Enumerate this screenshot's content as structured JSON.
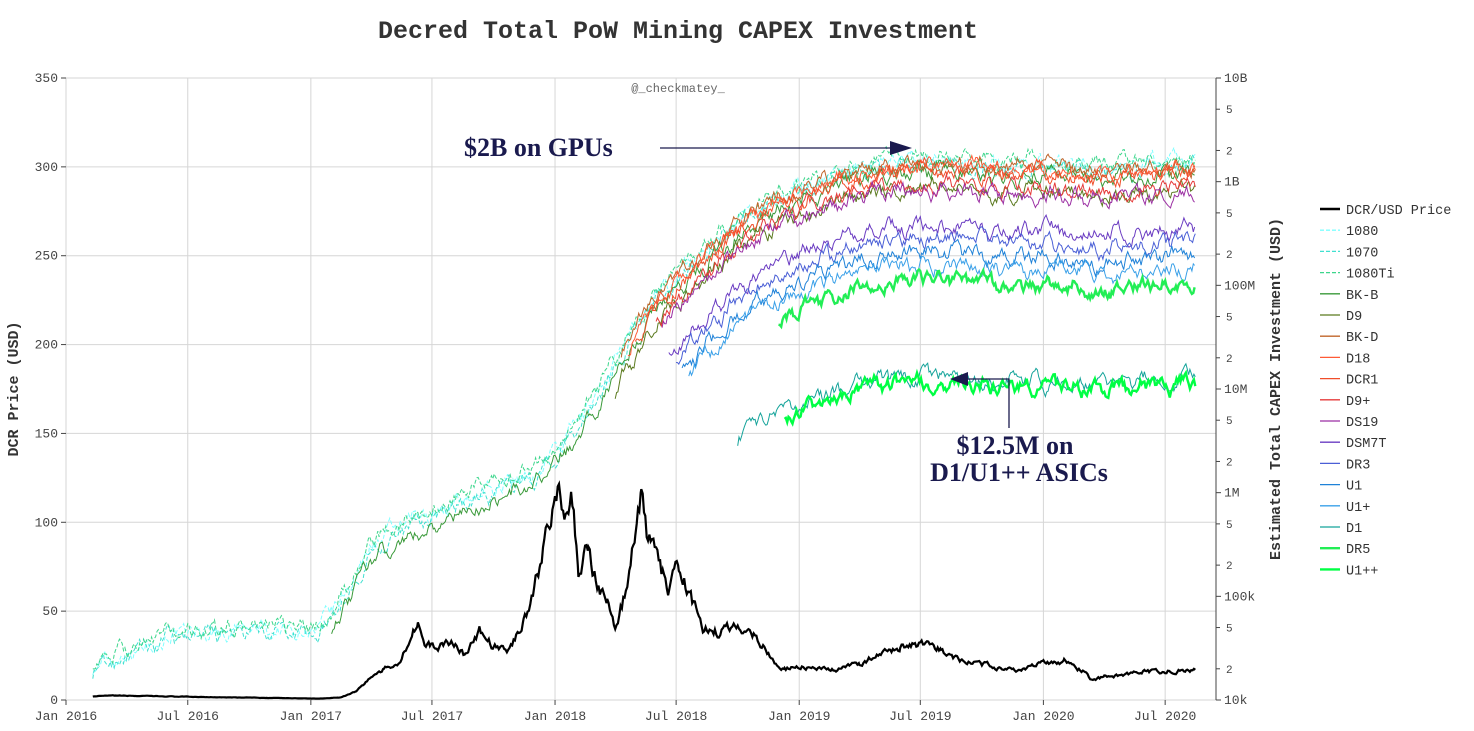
{
  "chart_data": {
    "type": "line",
    "title": "Decred Total PoW Mining CAPEX Investment",
    "credit": "@_checkmatey_",
    "ylabel": "DCR Price (USD)",
    "y2label": "Estimated Total CAPEX Investment (USD)",
    "y2scale": "log",
    "ylim": [
      0,
      350
    ],
    "y2lim": [
      10000,
      10000000000
    ],
    "xlim": [
      "2016-01-01",
      "2020-09-15"
    ],
    "grid": true,
    "legend_position": "right",
    "x_ticks": [
      "Jan 2016",
      "Jul 2016",
      "Jan 2017",
      "Jul 2017",
      "Jan 2018",
      "Jul 2018",
      "Jan 2019",
      "Jul 2019",
      "Jan 2020",
      "Jul 2020"
    ],
    "y_ticks": [
      "0",
      "50",
      "100",
      "150",
      "200",
      "250",
      "300",
      "350"
    ],
    "y2_major_ticks": [
      "10k",
      "100k",
      "1M",
      "10M",
      "100M",
      "1B",
      "10B"
    ],
    "y2_minor_ticks": [
      "2",
      "5"
    ],
    "price_series": {
      "name": "DCR/USD Price",
      "color": "#000000",
      "points": [
        [
          "2016-02-10",
          2
        ],
        [
          "2016-03-15",
          2.5
        ],
        [
          "2016-06-01",
          2
        ],
        [
          "2016-09-01",
          1.5
        ],
        [
          "2016-12-01",
          1
        ],
        [
          "2017-01-15",
          0.8
        ],
        [
          "2017-02-15",
          1.5
        ],
        [
          "2017-03-10",
          5
        ],
        [
          "2017-04-01",
          13
        ],
        [
          "2017-04-20",
          17
        ],
        [
          "2017-05-15",
          22
        ],
        [
          "2017-06-01",
          38
        ],
        [
          "2017-06-10",
          45
        ],
        [
          "2017-06-20",
          30
        ],
        [
          "2017-07-10",
          30
        ],
        [
          "2017-08-01",
          33
        ],
        [
          "2017-08-20",
          25
        ],
        [
          "2017-09-10",
          38
        ],
        [
          "2017-10-01",
          30
        ],
        [
          "2017-10-25",
          28
        ],
        [
          "2017-11-15",
          45
        ],
        [
          "2017-11-25",
          55
        ],
        [
          "2017-12-10",
          75
        ],
        [
          "2017-12-20",
          100
        ],
        [
          "2018-01-05",
          120
        ],
        [
          "2018-01-15",
          95
        ],
        [
          "2018-01-25",
          115
        ],
        [
          "2018-02-05",
          75
        ],
        [
          "2018-02-20",
          85
        ],
        [
          "2018-03-01",
          70
        ],
        [
          "2018-03-20",
          55
        ],
        [
          "2018-04-01",
          40
        ],
        [
          "2018-04-20",
          65
        ],
        [
          "2018-05-01",
          95
        ],
        [
          "2018-05-10",
          113
        ],
        [
          "2018-05-20",
          90
        ],
        [
          "2018-06-01",
          80
        ],
        [
          "2018-06-20",
          62
        ],
        [
          "2018-07-05",
          75
        ],
        [
          "2018-07-25",
          55
        ],
        [
          "2018-08-10",
          40
        ],
        [
          "2018-09-01",
          38
        ],
        [
          "2018-10-01",
          42
        ],
        [
          "2018-10-25",
          37
        ],
        [
          "2018-11-10",
          30
        ],
        [
          "2018-11-25",
          21
        ],
        [
          "2018-12-10",
          17
        ],
        [
          "2019-01-01",
          19
        ],
        [
          "2019-02-01",
          17
        ],
        [
          "2019-03-01",
          17
        ],
        [
          "2019-04-01",
          21
        ],
        [
          "2019-05-01",
          25
        ],
        [
          "2019-06-01",
          30
        ],
        [
          "2019-07-01",
          31
        ],
        [
          "2019-08-01",
          28
        ],
        [
          "2019-09-01",
          22
        ],
        [
          "2019-10-01",
          20
        ],
        [
          "2019-11-01",
          18
        ],
        [
          "2019-12-01",
          17
        ],
        [
          "2020-01-01",
          21
        ],
        [
          "2020-02-01",
          22
        ],
        [
          "2020-03-01",
          16
        ],
        [
          "2020-03-15",
          11
        ],
        [
          "2020-04-01",
          13
        ],
        [
          "2020-05-01",
          14
        ],
        [
          "2020-06-01",
          16
        ],
        [
          "2020-07-01",
          16
        ],
        [
          "2020-08-01",
          17
        ],
        [
          "2020-08-15",
          17
        ]
      ]
    },
    "series": [
      {
        "name": "1080",
        "color": "#7fffff",
        "dash": true,
        "start": "2016-02-10",
        "offset": 1.05
      },
      {
        "name": "1070",
        "color": "#40e0d0",
        "dash": true,
        "start": "2016-02-10",
        "offset": 0.95
      },
      {
        "name": "1080Ti",
        "color": "#3cd68c",
        "dash": true,
        "start": "2016-02-10",
        "offset": 1.12
      },
      {
        "name": "BK-B",
        "color": "#3a9a3a",
        "dash": false,
        "start": "2017-02-01",
        "offset": 0.78
      },
      {
        "name": "D9",
        "color": "#5b7a1f",
        "dash": false,
        "start": "2018-04-01",
        "offset": 0.55
      },
      {
        "name": "BK-D",
        "color": "#c0642a",
        "dash": false,
        "start": "2018-04-10",
        "offset": 0.98
      },
      {
        "name": "D18",
        "color": "#ff5a36",
        "dash": false,
        "start": "2018-04-20",
        "offset": 0.9
      },
      {
        "name": "DCR1",
        "color": "#f04e2a",
        "dash": false,
        "start": "2018-05-01",
        "offset": 0.83
      },
      {
        "name": "D9+",
        "color": "#e63b3b",
        "dash": false,
        "start": "2018-06-01",
        "offset": 0.6
      },
      {
        "name": "DS19",
        "color": "#9b2fa3",
        "dash": false,
        "start": "2018-06-10",
        "offset": 0.52
      },
      {
        "name": "DSM7T",
        "color": "#6a3bc2",
        "dash": false,
        "start": "2018-06-20",
        "offset": 0.235
      },
      {
        "name": "DR3",
        "color": "#4a5fd6",
        "dash": false,
        "start": "2018-07-01",
        "offset": 0.18
      },
      {
        "name": "U1",
        "color": "#1f82d8",
        "dash": false,
        "start": "2018-07-10",
        "offset": 0.13
      },
      {
        "name": "U1+",
        "color": "#3aa0e8",
        "dash": false,
        "start": "2018-07-20",
        "offset": 0.1
      },
      {
        "name": "D1",
        "color": "#14a39a",
        "dash": false,
        "start": "2018-10-01",
        "offset": 0.0083
      },
      {
        "name": "DR5",
        "color": "#22ee55",
        "dash": false,
        "start": "2018-12-01",
        "offset": 0.07
      },
      {
        "name": "U1++",
        "color": "#00ff44",
        "dash": false,
        "start": "2018-12-10",
        "offset": 0.0075
      }
    ],
    "base_capex_curve": [
      [
        "2016-02-10",
        20000
      ],
      [
        "2016-06-01",
        40000
      ],
      [
        "2016-10-01",
        45000
      ],
      [
        "2017-01-15",
        45000
      ],
      [
        "2017-03-01",
        120000
      ],
      [
        "2017-04-01",
        300000
      ],
      [
        "2017-06-01",
        500000
      ],
      [
        "2017-09-01",
        900000
      ],
      [
        "2017-12-01",
        1500000
      ],
      [
        "2018-01-15",
        3000000
      ],
      [
        "2018-03-01",
        8000000
      ],
      [
        "2018-04-15",
        25000000
      ],
      [
        "2018-06-01",
        80000000
      ],
      [
        "2018-08-01",
        180000000
      ],
      [
        "2018-10-01",
        400000000
      ],
      [
        "2018-12-01",
        700000000
      ],
      [
        "2019-02-01",
        1000000000
      ],
      [
        "2019-05-01",
        1500000000
      ],
      [
        "2019-08-01",
        1600000000
      ],
      [
        "2019-11-01",
        1400000000
      ],
      [
        "2020-01-01",
        1450000000
      ],
      [
        "2020-04-01",
        1300000000
      ],
      [
        "2020-06-01",
        1400000000
      ],
      [
        "2020-08-15",
        1500000000
      ]
    ]
  },
  "annotations": [
    {
      "text": "$2B on GPUs"
    },
    {
      "text": "$12.5M on"
    },
    {
      "text": "D1/U1++ ASICs"
    }
  ]
}
